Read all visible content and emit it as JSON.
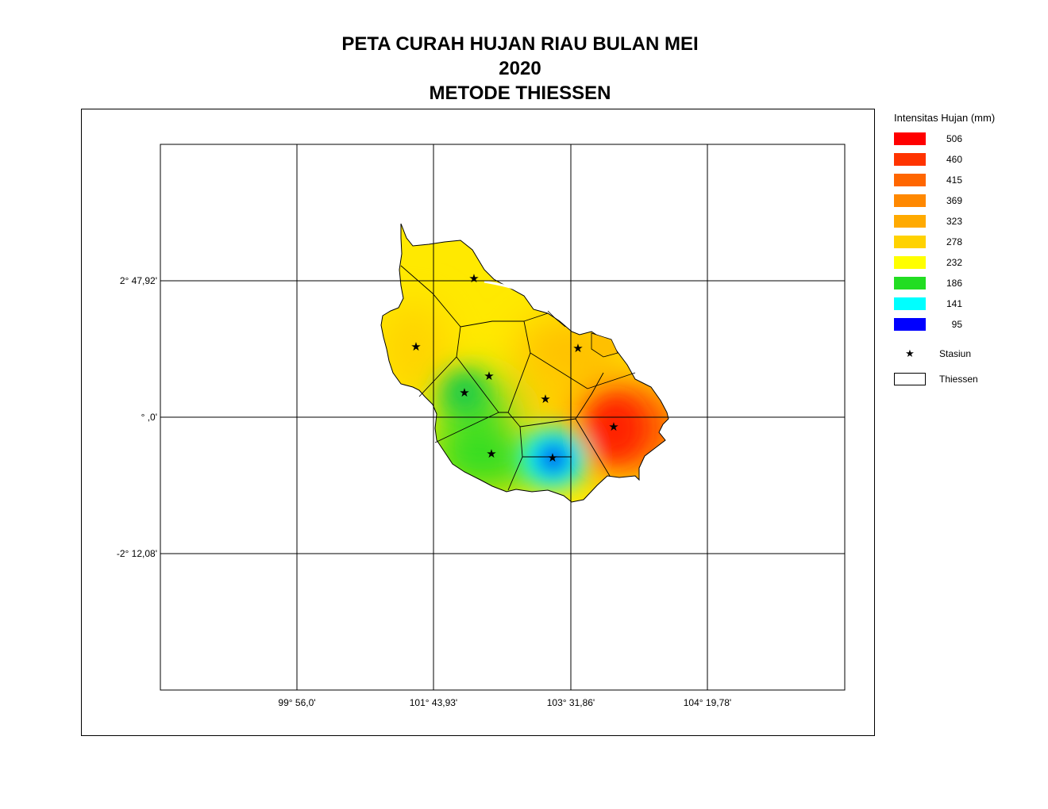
{
  "title": {
    "line1": "PETA CURAH HUJAN RIAU BULAN MEI",
    "line2": "2020",
    "line3": "METODE THIESSEN"
  },
  "axes": {
    "lon_ticks": [
      "99° 56,0'",
      "101° 43,93'",
      "103° 31,86'",
      "104° 19,78'"
    ],
    "lat_ticks": [
      "2° 47,92'",
      "° ,0'",
      "-2° 12,08'"
    ]
  },
  "legend": {
    "title": "Intensitas Hujan (mm)",
    "classes": [
      {
        "value": "506",
        "color": "#ff0000"
      },
      {
        "value": "460",
        "color": "#ff3300"
      },
      {
        "value": "415",
        "color": "#ff6600"
      },
      {
        "value": "369",
        "color": "#ff8800"
      },
      {
        "value": "323",
        "color": "#ffaa00"
      },
      {
        "value": "278",
        "color": "#ffd200"
      },
      {
        "value": "232",
        "color": "#ffff00"
      },
      {
        "value": "186",
        "color": "#22dd22"
      },
      {
        "value": "141",
        "color": "#00ffff"
      },
      {
        "value": "95",
        "color": "#0000ff"
      }
    ],
    "station_label": "Stasiun",
    "station_icon": "star-icon",
    "thiessen_label": "Thiessen"
  }
}
